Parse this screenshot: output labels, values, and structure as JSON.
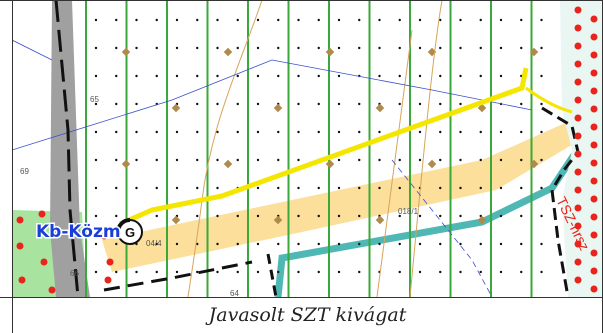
{
  "caption": "Javasolt SZT kivágat",
  "map": {
    "place_label": "Kb-Közm",
    "symbol_letter": "G",
    "road_label": "TSZ-hrsz",
    "parcel_labels": [
      "65",
      "69",
      "66",
      "64",
      "04/4",
      "018/1"
    ],
    "colors": {
      "grid_line": "#3aa83a",
      "road_yellow": "#f5e600",
      "parcel_fill": "#fbdf9a",
      "teal_road": "#4fb8b4",
      "tree_marker": "#b08a4a",
      "boundary_dot": "#e8241c",
      "green_zone": "#a8e4a0",
      "place_label": "#1a3fd8"
    }
  }
}
